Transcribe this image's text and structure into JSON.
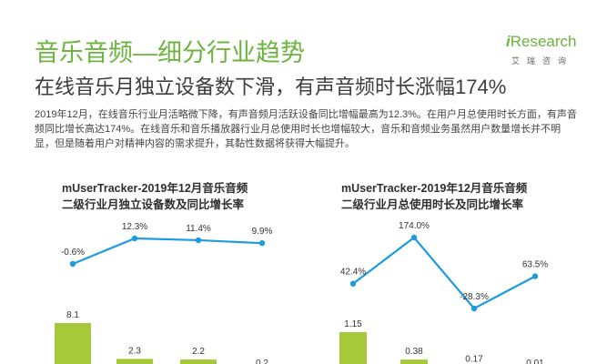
{
  "header": {
    "title": "音乐音频—细分行业趋势",
    "subtitle": "在线音乐月独立设备数下滑，有声音频时长涨幅174%"
  },
  "logo": {
    "brand_prefix": "i",
    "brand_rest": "Research",
    "sub": "艾瑞咨询"
  },
  "body": {
    "text": "2019年12月，在线音乐行业月活略微下降，有声音频月活跃设备同比增幅最高为12.3%。在用户月总使用时长方面，有声音频同比增长高达174%。在线音乐和音乐播放器行业月总使用时长也增幅较大，音乐和音频业务虽然用户数量增长并不明显，但是随着用户对精神内容的需求提升，其黏性数据将获得大幅提升。"
  },
  "colors": {
    "accent_green": "#6db33f",
    "line_blue": "#1e9be0",
    "bar_green": "#a6c93a"
  },
  "chart_data": [
    {
      "type": "bar+line",
      "title_line1": "mUserTracker-2019年12月音乐音频",
      "title_line2": "二级行业月独立设备数及同比增长率",
      "bars": {
        "values": [
          8.1,
          2.3,
          2.2,
          0.2
        ],
        "labels": [
          "8.1",
          "2.3",
          "2.2",
          "0.2"
        ]
      },
      "line": {
        "values": [
          -0.6,
          12.3,
          11.4,
          9.9
        ],
        "labels": [
          "-0.6%",
          "12.3%",
          "11.4%",
          "9.9%"
        ]
      }
    },
    {
      "type": "bar+line",
      "title_line1": "mUserTracker-2019年12月音乐音频",
      "title_line2": "二级行业月总使用时长及同比增长率",
      "bars": {
        "values": [
          1.15,
          0.38,
          0.17,
          0.01
        ],
        "labels": [
          "1.15",
          "0.38",
          "0.17",
          "0.01"
        ]
      },
      "line": {
        "values": [
          42.4,
          174.0,
          -28.3,
          63.5
        ],
        "labels": [
          "42.4%",
          "174.0%",
          "-28.3%",
          "63.5%"
        ]
      }
    }
  ]
}
